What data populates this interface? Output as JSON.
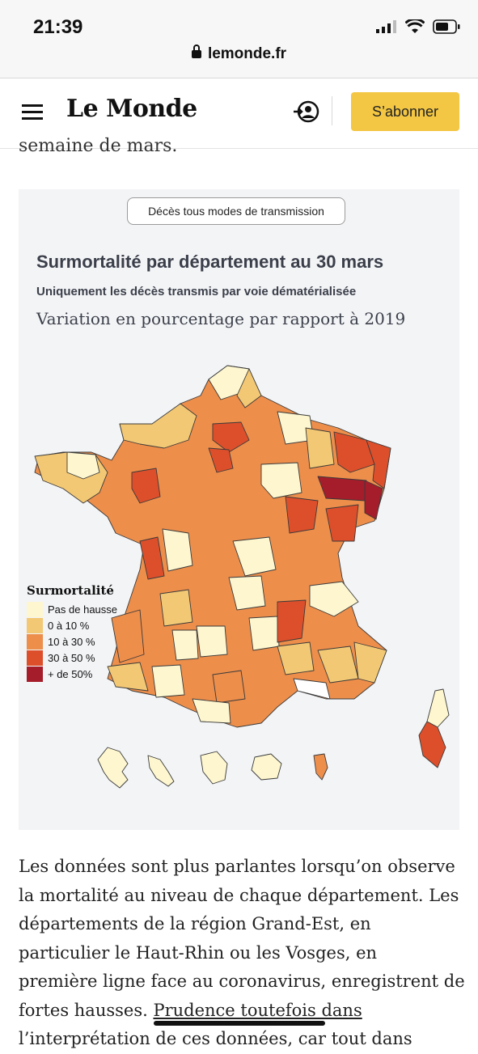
{
  "status_bar": {
    "time": "21:39",
    "url": "lemonde.fr"
  },
  "header": {
    "logo": "Le Monde",
    "subscribe_label": "S’abonner"
  },
  "article": {
    "clipped_line": "semaine de mars.",
    "paragraph_lines": [
      "Les données sont plus parlantes lorsqu’on observe",
      "la mortalité au niveau de chaque département. Les",
      "départements de la région Grand-Est, en",
      "particulier le Haut-Rhin ou les Vosges, en",
      "première ligne face au coronavirus, enregistrent de"
    ],
    "last_line_before": "fortes hausses. ",
    "last_line_link": "Prudence toutefois dans",
    "cut_line": "l’interprétation de ces données, car tout dans"
  },
  "figure": {
    "toggle_label": "Décès tous modes de transmission",
    "title": "Surmortalité par département au 30 mars",
    "subtitle": "Uniquement les décès transmis par voie dématérialisée",
    "description": "Variation en pourcentage par rapport à 2019",
    "legend": {
      "title": "Surmortalité",
      "items": [
        {
          "label": "Pas de hausse",
          "color": "#fdf6cf"
        },
        {
          "label": "0 à 10 %",
          "color": "#f3c874"
        },
        {
          "label": "10 à 30 %",
          "color": "#ed8e4b"
        },
        {
          "label": "30 à 50 %",
          "color": "#dd4f2b"
        },
        {
          "label": "+ de 50%",
          "color": "#a51d2b"
        }
      ]
    }
  }
}
